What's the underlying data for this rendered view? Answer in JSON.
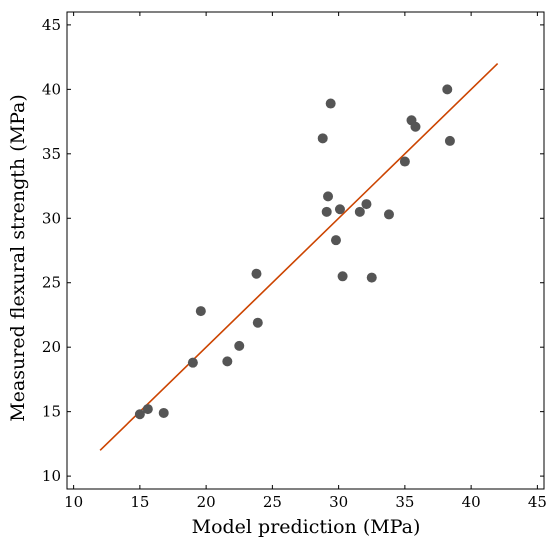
{
  "chart_data": {
    "type": "scatter",
    "xlabel": "Model prediction (MPa)",
    "ylabel": "Measured flexural strength (MPa)",
    "xlim": [
      9.5,
      45.5
    ],
    "ylim": [
      9,
      46
    ],
    "x_ticks": [
      10,
      15,
      20,
      25,
      30,
      35,
      40,
      45
    ],
    "y_ticks": [
      10,
      15,
      20,
      25,
      30,
      35,
      40,
      45
    ],
    "grid": false,
    "point_color": "#555555",
    "line_color": "#cc4400",
    "series": [
      {
        "type": "scatter",
        "points": [
          [
            15.0,
            14.8
          ],
          [
            15.6,
            15.2
          ],
          [
            16.8,
            14.9
          ],
          [
            19.0,
            18.8
          ],
          [
            19.6,
            22.8
          ],
          [
            21.6,
            18.9
          ],
          [
            22.5,
            20.1
          ],
          [
            23.8,
            25.7
          ],
          [
            23.9,
            21.9
          ],
          [
            28.8,
            36.2
          ],
          [
            29.1,
            30.5
          ],
          [
            29.2,
            31.7
          ],
          [
            29.4,
            38.9
          ],
          [
            29.8,
            28.3
          ],
          [
            30.1,
            30.7
          ],
          [
            30.3,
            25.5
          ],
          [
            31.6,
            30.5
          ],
          [
            32.1,
            31.1
          ],
          [
            32.5,
            25.4
          ],
          [
            33.8,
            30.3
          ],
          [
            35.0,
            34.4
          ],
          [
            35.5,
            37.6
          ],
          [
            35.8,
            37.1
          ],
          [
            38.2,
            40.0
          ],
          [
            38.4,
            36.0
          ]
        ]
      },
      {
        "type": "line",
        "points": [
          [
            12,
            12
          ],
          [
            42,
            42
          ]
        ]
      }
    ]
  }
}
